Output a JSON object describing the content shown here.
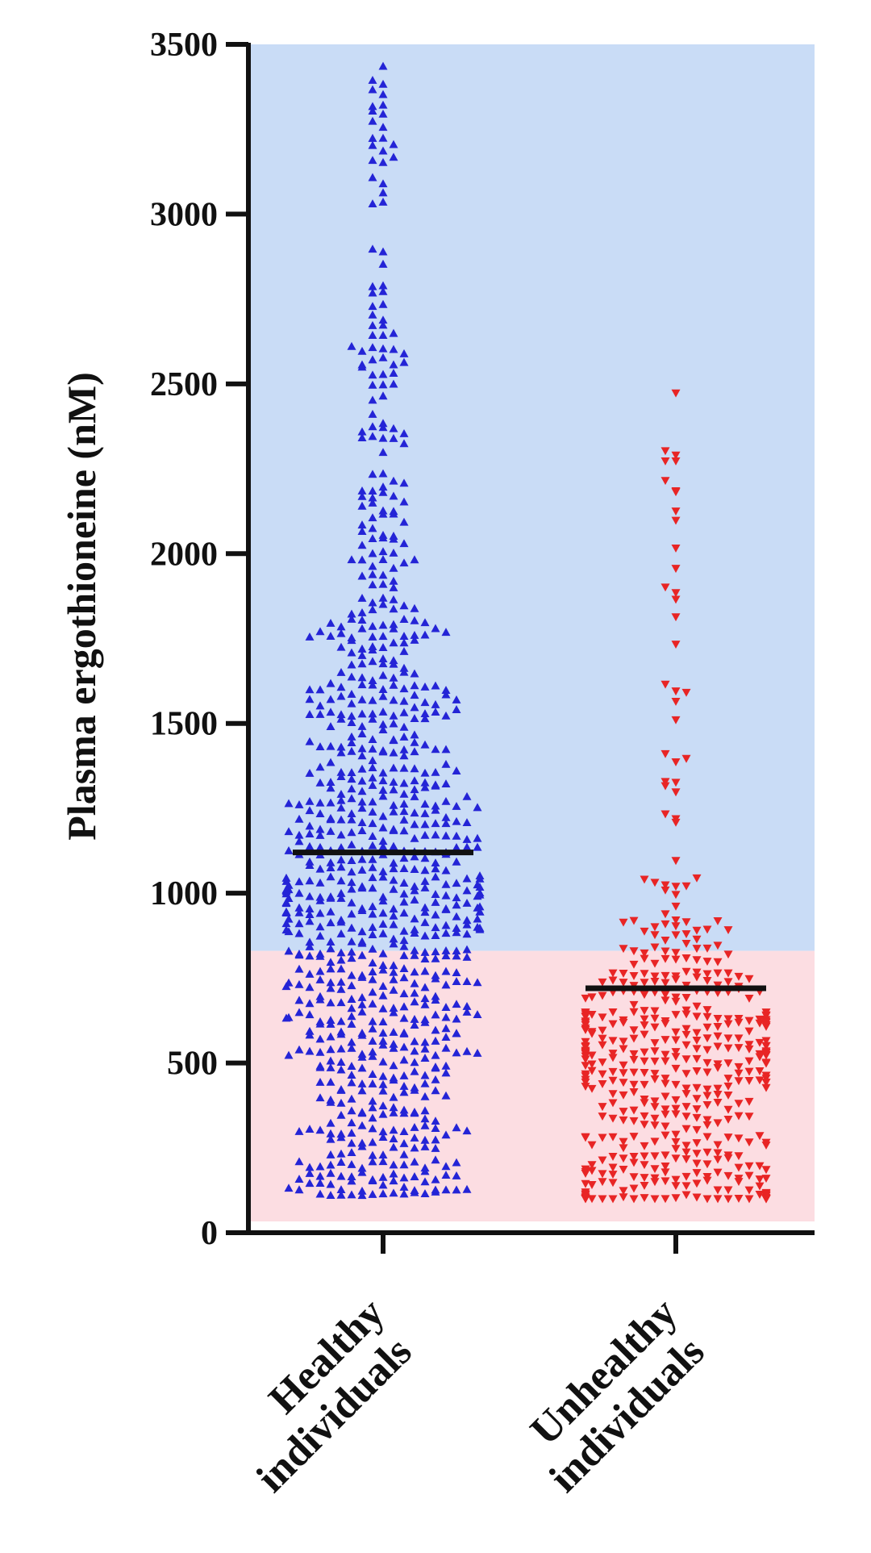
{
  "chart_data": {
    "type": "scatter",
    "subtype": "dot-plot",
    "ylabel": "Plasma ergothioneine (nM)",
    "xlabel": "",
    "ylim": [
      0,
      3500
    ],
    "yticks": [
      0,
      500,
      1000,
      1500,
      2000,
      2500,
      3000,
      3500
    ],
    "yticklabels": [
      "0",
      "500",
      "1000",
      "1500",
      "2000",
      "2500",
      "3000",
      "3500"
    ],
    "categories": [
      [
        "Healthy",
        "individuals"
      ],
      [
        "Unhealthy",
        "individuals"
      ]
    ],
    "bands": [
      {
        "from": 830,
        "to": 3500,
        "color": "#c9dcf6"
      },
      {
        "from": 0,
        "to": 830,
        "color": "#fcdde2"
      }
    ],
    "series": [
      {
        "marker": "triangle-up",
        "color": "#2424d6",
        "mean": 1120,
        "values_y_range": [
          110,
          3450
        ],
        "point_count": 900
      },
      {
        "marker": "triangle-down",
        "color": "#e82525",
        "mean": 720,
        "values_y_range": [
          100,
          2500
        ],
        "point_count": 480
      }
    ],
    "grid": false,
    "legend": "none"
  }
}
